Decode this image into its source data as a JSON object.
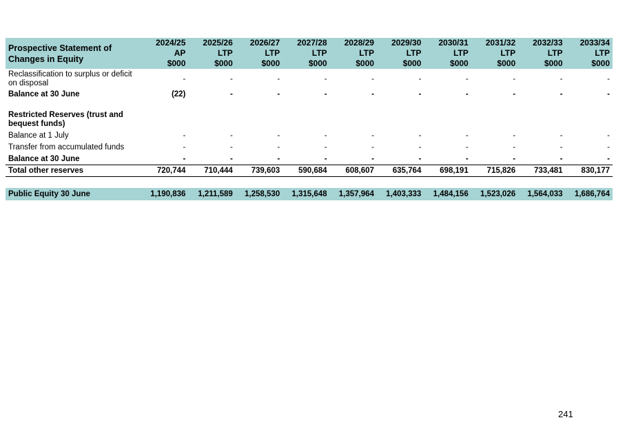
{
  "table": {
    "title": "Prospective Statement of Changes in Equity",
    "columns": [
      {
        "year": "2024/25",
        "type": "AP",
        "unit": "$000"
      },
      {
        "year": "2025/26",
        "type": "LTP",
        "unit": "$000"
      },
      {
        "year": "2026/27",
        "type": "LTP",
        "unit": "$000"
      },
      {
        "year": "2027/28",
        "type": "LTP",
        "unit": "$000"
      },
      {
        "year": "2028/29",
        "type": "LTP",
        "unit": "$000"
      },
      {
        "year": "2029/30",
        "type": "LTP",
        "unit": "$000"
      },
      {
        "year": "2030/31",
        "type": "LTP",
        "unit": "$000"
      },
      {
        "year": "2031/32",
        "type": "LTP",
        "unit": "$000"
      },
      {
        "year": "2032/33",
        "type": "LTP",
        "unit": "$000"
      },
      {
        "year": "2033/34",
        "type": "LTP",
        "unit": "$000"
      }
    ],
    "rows": {
      "reclassification": {
        "label": "Reclassification to surplus or deficit on disposal",
        "values": [
          "-",
          "-",
          "-",
          "-",
          "-",
          "-",
          "-",
          "-",
          "-",
          "-"
        ]
      },
      "balance_30_june_1": {
        "label": "Balance at 30 June",
        "values": [
          "(22)",
          "-",
          "-",
          "-",
          "-",
          "-",
          "-",
          "-",
          "-",
          "-"
        ]
      },
      "restricted_heading": {
        "label": "Restricted Reserves (trust and bequest funds)"
      },
      "balance_1_july": {
        "label": "Balance at 1 July",
        "values": [
          "-",
          "-",
          "-",
          "-",
          "-",
          "-",
          "-",
          "-",
          "-",
          "-"
        ]
      },
      "transfer": {
        "label": "Transfer from accumulated funds",
        "values": [
          "-",
          "-",
          "-",
          "-",
          "-",
          "-",
          "-",
          "-",
          "-",
          "-"
        ]
      },
      "balance_30_june_2": {
        "label": "Balance at 30 June",
        "values": [
          "-",
          "-",
          "-",
          "-",
          "-",
          "-",
          "-",
          "-",
          "-",
          "-"
        ]
      },
      "total_other_reserves": {
        "label": "Total other reserves",
        "values": [
          "720,744",
          "710,444",
          "739,603",
          "590,684",
          "608,607",
          "635,764",
          "698,191",
          "715,826",
          "733,481",
          "830,177"
        ]
      },
      "public_equity": {
        "label": "Public Equity 30 June",
        "values": [
          "1,190,836",
          "1,211,589",
          "1,258,530",
          "1,315,648",
          "1,357,964",
          "1,403,333",
          "1,484,156",
          "1,523,026",
          "1,564,033",
          "1,686,764"
        ]
      }
    }
  },
  "page_number": "241"
}
